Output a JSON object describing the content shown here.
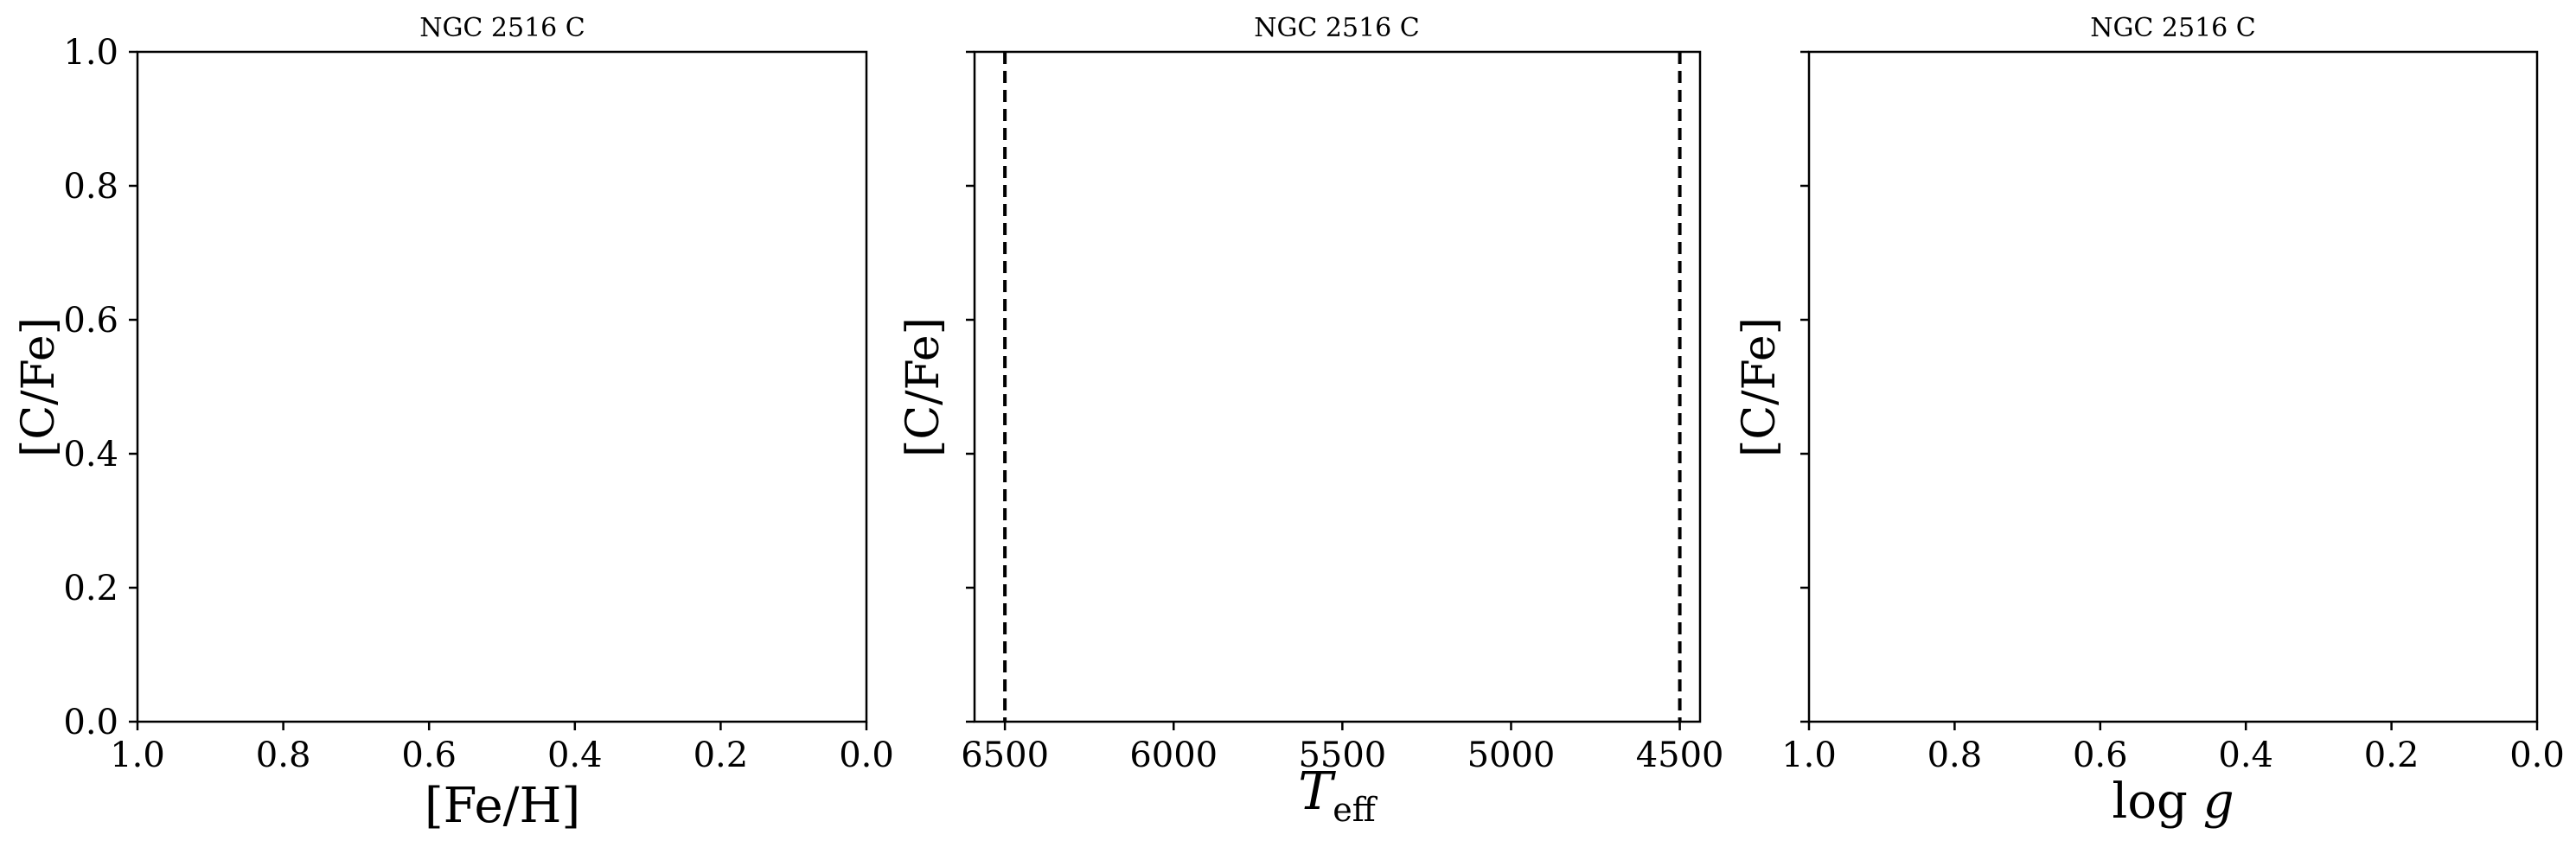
{
  "figure": {
    "layout": "1x3 subplots",
    "line_color": "#000000"
  },
  "chart_data": [
    {
      "type": "scatter",
      "title": "NGC 2516 C",
      "xlabel": "[Fe/H]",
      "ylabel": "[C/Fe]",
      "xlim": [
        1.0,
        0.0
      ],
      "ylim": [
        0.0,
        1.0
      ],
      "xticks": [
        1.0,
        0.8,
        0.6,
        0.4,
        0.2,
        0.0
      ],
      "xtick_labels": [
        "1.0",
        "0.8",
        "0.6",
        "0.4",
        "0.2",
        "0.0"
      ],
      "yticks": [
        0.0,
        0.2,
        0.4,
        0.6,
        0.8,
        1.0
      ],
      "ytick_labels": [
        "0.0",
        "0.2",
        "0.4",
        "0.6",
        "0.8",
        "1.0"
      ],
      "show_ytick_labels": true,
      "series": [],
      "vlines": [],
      "grid": false
    },
    {
      "type": "scatter",
      "title": "NGC 2516 C",
      "xlabel": "T_eff",
      "ylabel": "[C/Fe]",
      "xlim": [
        6590,
        4440
      ],
      "ylim": [
        0.0,
        1.0
      ],
      "xticks": [
        6500,
        6000,
        5500,
        5000,
        4500
      ],
      "xtick_labels": [
        "6500",
        "6000",
        "5500",
        "5000",
        "4500"
      ],
      "yticks": [
        0.0,
        0.2,
        0.4,
        0.6,
        0.8,
        1.0
      ],
      "ytick_labels": [
        "",
        "",
        "",
        "",
        "",
        ""
      ],
      "show_ytick_labels": false,
      "series": [],
      "vlines": [
        {
          "x": 6500,
          "style": "dashed"
        },
        {
          "x": 4500,
          "style": "dashed"
        }
      ],
      "grid": false
    },
    {
      "type": "scatter",
      "title": "NGC 2516 C",
      "xlabel": "log g",
      "ylabel": "[C/Fe]",
      "xlim": [
        1.0,
        0.0
      ],
      "ylim": [
        0.0,
        1.0
      ],
      "xticks": [
        1.0,
        0.8,
        0.6,
        0.4,
        0.2,
        0.0
      ],
      "xtick_labels": [
        "1.0",
        "0.8",
        "0.6",
        "0.4",
        "0.2",
        "0.0"
      ],
      "yticks": [
        0.0,
        0.2,
        0.4,
        0.6,
        0.8,
        1.0
      ],
      "ytick_labels": [
        "",
        "",
        "",
        "",
        "",
        ""
      ],
      "show_ytick_labels": false,
      "series": [],
      "vlines": [],
      "grid": false
    }
  ]
}
